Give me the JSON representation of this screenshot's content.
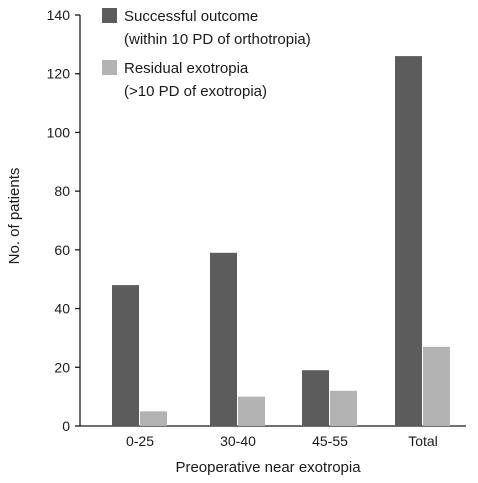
{
  "chart_data": {
    "type": "bar",
    "title": "",
    "xlabel": "Preoperative near exotropia",
    "ylabel": "No. of patients",
    "categories": [
      "0-25",
      "30-40",
      "45-55",
      "Total"
    ],
    "ylim": [
      0,
      140
    ],
    "yticks": [
      0,
      20,
      40,
      60,
      80,
      100,
      120,
      140
    ],
    "grid": false,
    "legend_position": "top-center",
    "series": [
      {
        "name": "Successful outcome",
        "legend_lines": [
          "Successful outcome",
          "(within 10 PD of orthotropia)"
        ],
        "color": "#5c5c5c",
        "values": [
          48,
          59,
          19,
          126
        ]
      },
      {
        "name": "Residual exotropia",
        "legend_lines": [
          "Residual exotropia",
          "(>10 PD of exotropia)"
        ],
        "color": "#b3b3b3",
        "values": [
          5,
          10,
          12,
          27
        ]
      }
    ]
  }
}
